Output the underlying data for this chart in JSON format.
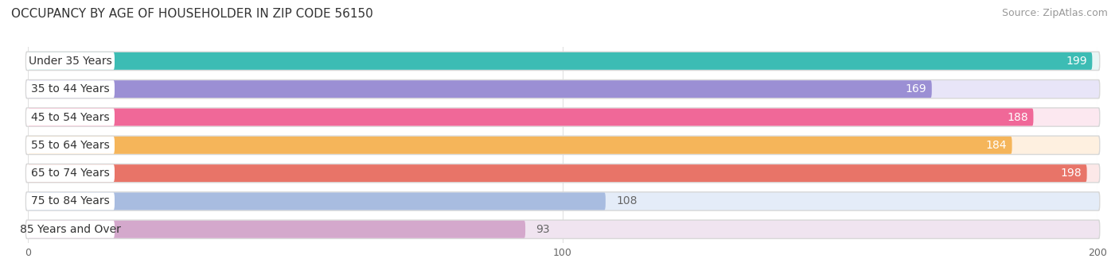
{
  "title": "OCCUPANCY BY AGE OF HOUSEHOLDER IN ZIP CODE 56150",
  "source": "Source: ZipAtlas.com",
  "categories": [
    "Under 35 Years",
    "35 to 44 Years",
    "45 to 54 Years",
    "55 to 64 Years",
    "65 to 74 Years",
    "75 to 84 Years",
    "85 Years and Over"
  ],
  "values": [
    199,
    169,
    188,
    184,
    198,
    108,
    93
  ],
  "bar_colors": [
    "#3cbcb4",
    "#9b8fd4",
    "#f06898",
    "#f5b55a",
    "#e87468",
    "#a8bce0",
    "#d4a8cc"
  ],
  "bar_bg_colors": [
    "#e8f5f5",
    "#e8e5f8",
    "#fce8f0",
    "#fef0e0",
    "#fce8e8",
    "#e4ecf8",
    "#f0e4f0"
  ],
  "xlim": [
    0,
    200
  ],
  "xticks": [
    0,
    100,
    200
  ],
  "title_fontsize": 11,
  "source_fontsize": 9,
  "label_fontsize": 10,
  "value_fontsize": 10,
  "background_color": "#ffffff",
  "plot_bg_color": "#ffffff",
  "label_bg_color": "#ffffff",
  "bar_border_color": "#e0e0e0",
  "value_threshold": 150,
  "value_color_inside": "#ffffff",
  "value_color_outside": "#666666"
}
